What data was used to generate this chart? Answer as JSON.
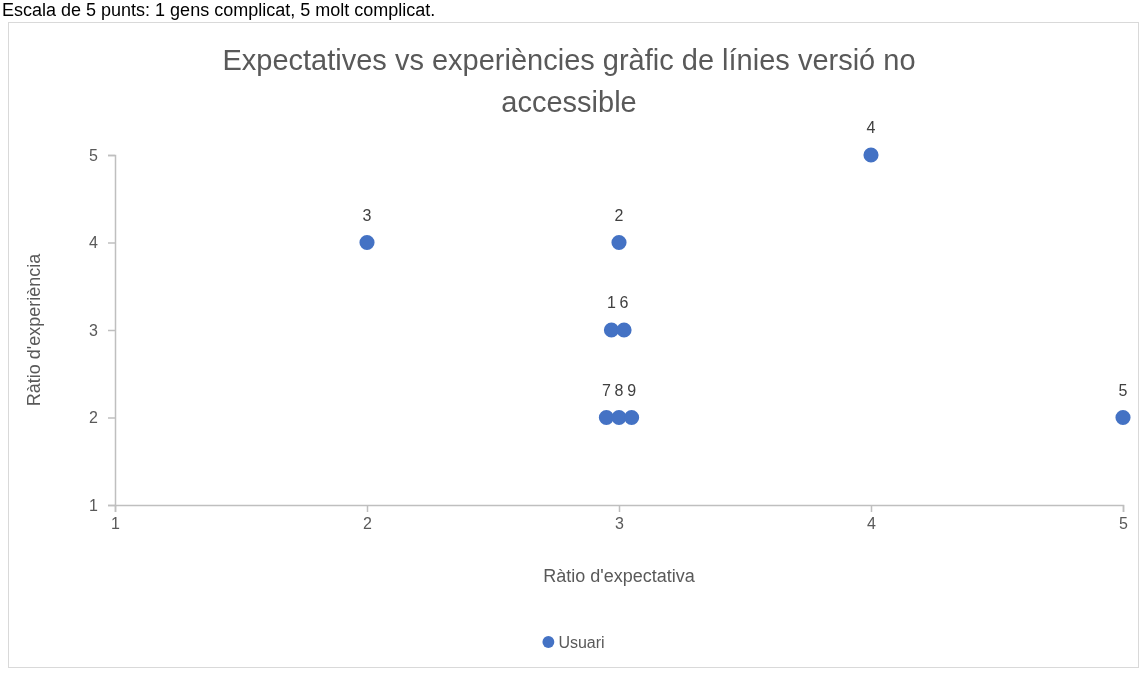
{
  "chart_data": {
    "type": "scatter",
    "title": "Expectatives vs experiències gràfic de línies versió no accessible",
    "annotations": [
      "Escala de 5 punts: 1 gens complicat, 5 molt complicat.",
      {
        "text": "1",
        "x": 2.97,
        "y": 3
      },
      {
        "text": "2",
        "x": 3,
        "y": 4
      },
      {
        "text": "3",
        "x": 2,
        "y": 4
      },
      {
        "text": "4",
        "x": 4,
        "y": 5
      },
      {
        "text": "5",
        "x": 5,
        "y": 2
      },
      {
        "text": "6",
        "x": 3.02,
        "y": 3
      },
      {
        "text": "7",
        "x": 2.95,
        "y": 2
      },
      {
        "text": "8",
        "x": 3,
        "y": 2
      },
      {
        "text": "9",
        "x": 3.05,
        "y": 2
      }
    ],
    "xlabel": "Ràtio d'expectativa",
    "ylabel": "Ràtio d'experiència",
    "x": [
      2.97,
      3,
      2,
      4,
      5,
      3.02,
      2.95,
      3,
      3.05
    ],
    "series": [
      {
        "name": "Usuari",
        "color": "#4472c4",
        "values": [
          3,
          4,
          4,
          5,
          2,
          3,
          2,
          2,
          2
        ]
      }
    ],
    "xlim": [
      1,
      5
    ],
    "ylim": [
      1,
      5
    ],
    "xticks": [
      1,
      2,
      3,
      4,
      5
    ],
    "yticks": [
      1,
      2,
      3,
      4,
      5
    ],
    "marker": "circle",
    "legend": "bottom"
  }
}
